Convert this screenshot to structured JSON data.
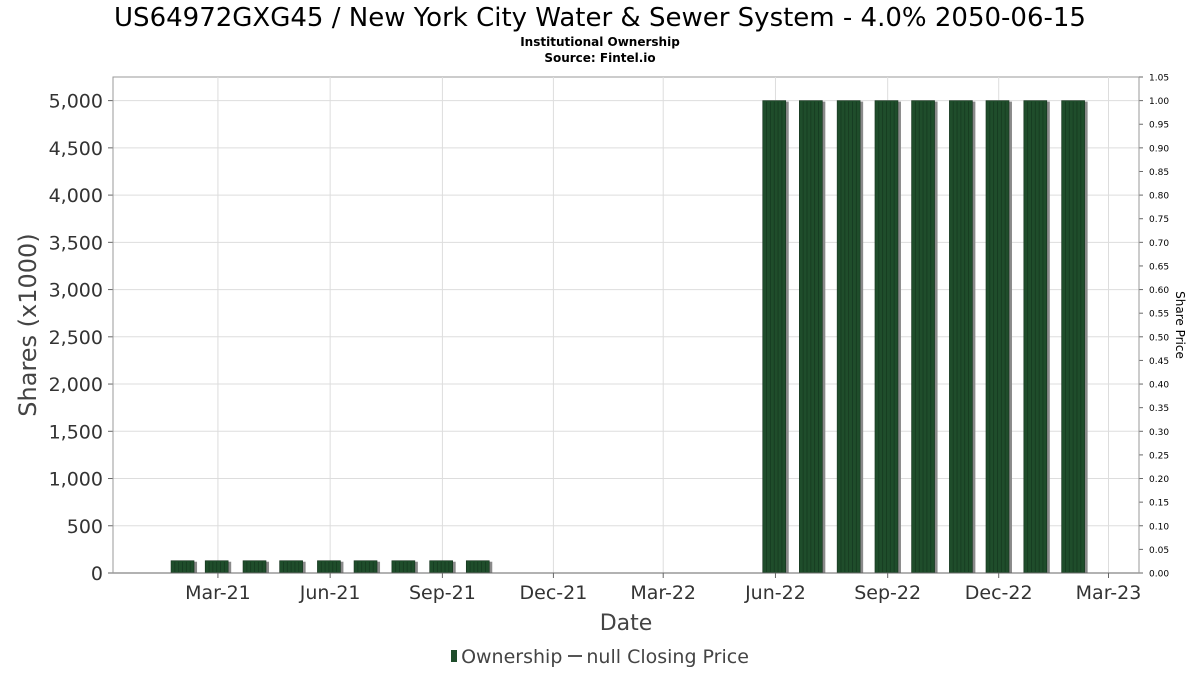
{
  "header": {
    "title": "US64972GXG45 / New York City Water & Sewer System - 4.0% 2050-06-15",
    "subtitle1": "Institutional Ownership",
    "subtitle2": "Source: Fintel.io"
  },
  "legend": {
    "ownership_label": "Ownership",
    "price_label": "null Closing Price"
  },
  "colors": {
    "bar": "#1f4d2b",
    "bar_shadow": "#8a8a8a",
    "grid": "#dddddd"
  },
  "chart_data": {
    "type": "bar",
    "xlabel": "Date",
    "ylabel": "Shares (x1000)",
    "y2label": "Share Price",
    "x_ticks": [
      "Mar-21",
      "Jun-21",
      "Sep-21",
      "Dec-21",
      "Mar-22",
      "Jun-22",
      "Sep-22",
      "Dec-22",
      "Mar-23"
    ],
    "x_tick_dates": [
      "2021-03-01",
      "2021-06-01",
      "2021-09-01",
      "2021-12-01",
      "2022-03-01",
      "2022-06-01",
      "2022-09-01",
      "2022-12-01",
      "2023-03-01"
    ],
    "xlim": [
      "2020-12-05",
      "2023-03-26"
    ],
    "ylim": [
      0,
      5250
    ],
    "y_ticks": [
      0,
      500,
      1000,
      1500,
      2000,
      2500,
      3000,
      3500,
      4000,
      4500,
      5000
    ],
    "y_tick_labels": [
      "0",
      "500",
      "1,000",
      "1,500",
      "2,000",
      "2,500",
      "3,000",
      "3,500",
      "4,000",
      "4,500",
      "5,000"
    ],
    "y2lim": [
      0,
      1.05
    ],
    "y2_ticks": [
      "0.00",
      "0.05",
      "0.10",
      "0.15",
      "0.20",
      "0.25",
      "0.30",
      "0.35",
      "0.40",
      "0.45",
      "0.50",
      "0.55",
      "0.60",
      "0.65",
      "0.70",
      "0.75",
      "0.80",
      "0.85",
      "0.90",
      "0.95",
      "1.00",
      "1.05"
    ],
    "grid": true,
    "legend_position": "bottom",
    "series": [
      {
        "name": "Ownership",
        "x": [
          "2021-01-31",
          "2021-02-28",
          "2021-03-31",
          "2021-04-30",
          "2021-05-31",
          "2021-06-30",
          "2021-07-31",
          "2021-08-31",
          "2021-09-30",
          "2022-05-31",
          "2022-06-30",
          "2022-07-31",
          "2022-08-31",
          "2022-09-30",
          "2022-10-31",
          "2022-11-30",
          "2022-12-31",
          "2023-01-31"
        ],
        "values": [
          130,
          130,
          130,
          130,
          130,
          130,
          130,
          130,
          130,
          5000,
          5000,
          5000,
          5000,
          5000,
          5000,
          5000,
          5000,
          5000
        ]
      }
    ]
  }
}
